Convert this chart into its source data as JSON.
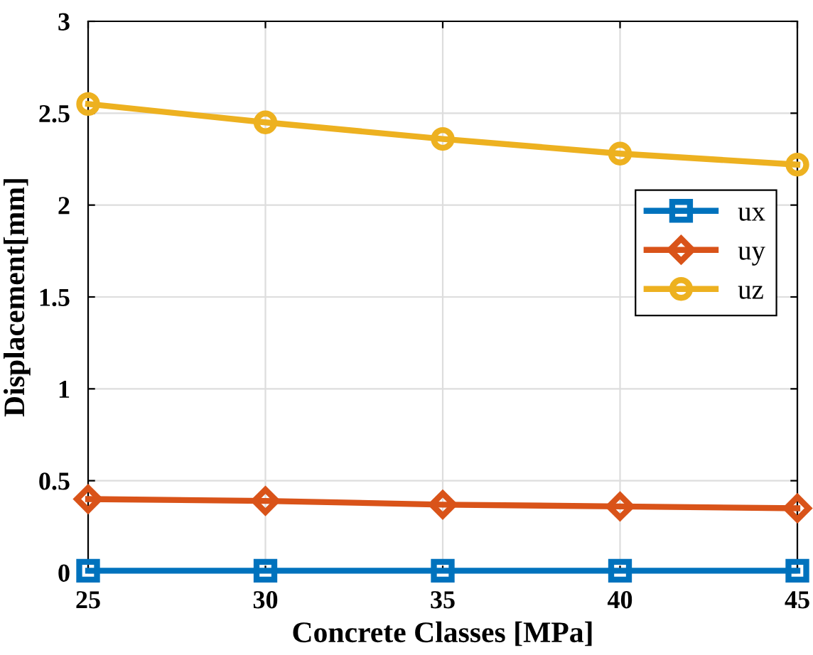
{
  "chart_data": {
    "type": "line",
    "xlabel": "Concrete Classes [MPa]",
    "ylabel": "Displacement[mm]",
    "x": [
      25,
      30,
      35,
      40,
      45
    ],
    "series": [
      {
        "name": "ux",
        "color": "#0072bd",
        "marker": "square",
        "values": [
          0.01,
          0.01,
          0.01,
          0.01,
          0.01
        ]
      },
      {
        "name": "uy",
        "color": "#d95319",
        "marker": "diamond",
        "values": [
          0.4,
          0.39,
          0.37,
          0.36,
          0.35
        ]
      },
      {
        "name": "uz",
        "color": "#edb120",
        "marker": "circle",
        "values": [
          2.55,
          2.45,
          2.36,
          2.28,
          2.22
        ]
      }
    ],
    "xlim": [
      25,
      45
    ],
    "xticks": [
      25,
      30,
      35,
      40,
      45
    ],
    "ylim": [
      0,
      3
    ],
    "yticks": [
      0,
      0.5,
      1,
      1.5,
      2,
      2.5,
      3
    ],
    "grid": true,
    "legend": "right",
    "line_style": "solid"
  }
}
